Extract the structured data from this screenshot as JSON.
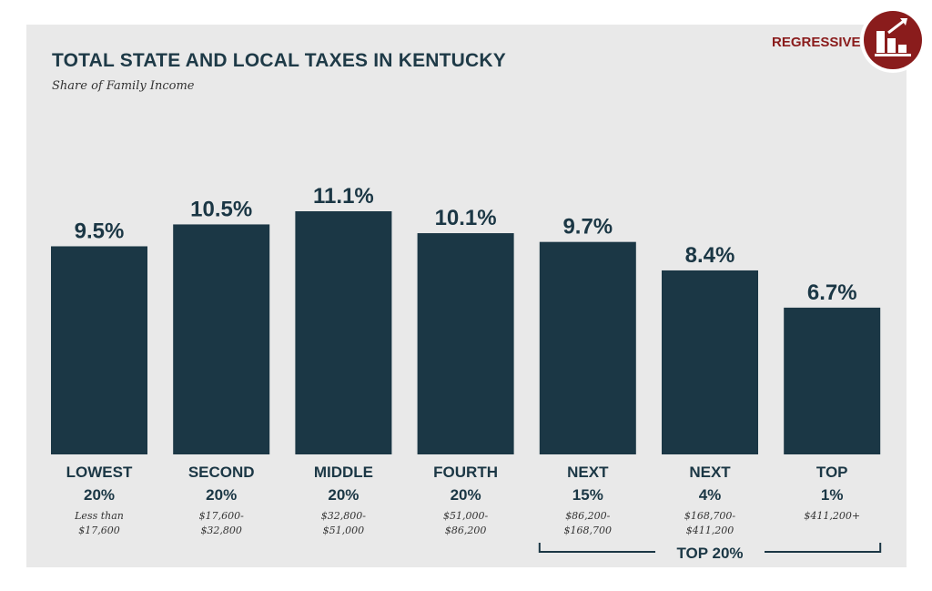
{
  "chart_data": {
    "type": "bar",
    "title": "TOTAL STATE AND LOCAL TAXES IN KENTUCKY",
    "subtitle": "Share of Family Income",
    "badge": "REGRESSIVE",
    "value_suffix": "%",
    "categories": [
      {
        "line1": "LOWEST",
        "line2": "20%",
        "range1": "Less than",
        "range2": "$17,600"
      },
      {
        "line1": "SECOND",
        "line2": "20%",
        "range1": "$17,600-",
        "range2": "$32,800"
      },
      {
        "line1": "MIDDLE",
        "line2": "20%",
        "range1": "$32,800-",
        "range2": "$51,000"
      },
      {
        "line1": "FOURTH",
        "line2": "20%",
        "range1": "$51,000-",
        "range2": "$86,200"
      },
      {
        "line1": "NEXT",
        "line2": "15%",
        "range1": "$86,200-",
        "range2": "$168,700"
      },
      {
        "line1": "NEXT",
        "line2": "4%",
        "range1": "$168,700-",
        "range2": "$411,200"
      },
      {
        "line1": "TOP",
        "line2": "1%",
        "range1": "$411,200+",
        "range2": ""
      }
    ],
    "values": [
      9.5,
      10.5,
      11.1,
      10.1,
      9.7,
      8.4,
      6.7
    ],
    "ylim": [
      0,
      12
    ],
    "group_bracket": {
      "label": "TOP 20%",
      "from_index": 4,
      "to_index": 6
    }
  },
  "colors": {
    "bar": "#1b3745",
    "badge": "#8a1c1c",
    "panel": "#e9e9e9"
  }
}
